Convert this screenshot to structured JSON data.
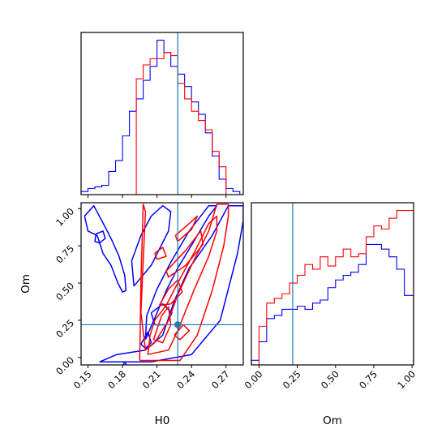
{
  "chart_data": [
    {
      "type": "histogram",
      "panel": "top-left",
      "parameter": "H0",
      "truth": 0.228,
      "xlim": [
        0.144,
        0.285
      ],
      "bins": [
        0.144,
        0.15,
        0.156,
        0.162,
        0.168,
        0.174,
        0.18,
        0.186,
        0.192,
        0.198,
        0.204,
        0.21,
        0.216,
        0.222,
        0.228,
        0.234,
        0.24,
        0.246,
        0.252,
        0.258,
        0.264,
        0.27,
        0.276,
        0.282
      ],
      "series": [
        {
          "color": "#0000ff",
          "values": [
            0.02,
            0.04,
            0.05,
            0.06,
            0.15,
            0.22,
            0.38,
            0.54,
            0.62,
            0.74,
            0.83,
            1.0,
            0.92,
            0.83,
            0.78,
            0.7,
            0.6,
            0.52,
            0.4,
            0.25,
            0.1,
            0.04,
            0.02
          ]
        },
        {
          "color": "#ff0000",
          "values": [
            0,
            0,
            0,
            0,
            0,
            0,
            0,
            0,
            0.75,
            0.84,
            0.88,
            0.88,
            0.92,
            0.9,
            0.72,
            0.62,
            0.54,
            0.48,
            0.42,
            0.28,
            0.18,
            0,
            0
          ]
        }
      ]
    },
    {
      "type": "histogram",
      "panel": "bottom-right",
      "parameter": "Om",
      "truth": 0.22,
      "xlim": [
        -0.05,
        1.01
      ],
      "xlabel": "Om",
      "xticks": [
        "0.00",
        "0.25",
        "0.50",
        "0.75",
        "1.00"
      ],
      "bins": [
        -0.05,
        0.0,
        0.05,
        0.1,
        0.15,
        0.2,
        0.25,
        0.3,
        0.35,
        0.4,
        0.45,
        0.5,
        0.55,
        0.6,
        0.65,
        0.7,
        0.75,
        0.8,
        0.85,
        0.9,
        0.95,
        1.01
      ],
      "series": [
        {
          "color": "#0000ff",
          "values": [
            0.03,
            0.15,
            0.3,
            0.32,
            0.36,
            0.36,
            0.38,
            0.36,
            0.4,
            0.42,
            0.5,
            0.55,
            0.58,
            0.6,
            0.65,
            0.78,
            0.78,
            0.75,
            0.7,
            0.62,
            0.45
          ]
        },
        {
          "color": "#ff0000",
          "values": [
            0,
            0.25,
            0.4,
            0.43,
            0.46,
            0.53,
            0.58,
            0.65,
            0.62,
            0.7,
            0.64,
            0.7,
            0.75,
            0.7,
            0.72,
            0.83,
            0.9,
            0.88,
            0.95,
            1.0,
            1.0
          ]
        }
      ]
    },
    {
      "type": "contour",
      "panel": "bottom-left",
      "x_parameter": "H0",
      "y_parameter": "Om",
      "xlabel": "H0",
      "ylabel": "Om",
      "xlim": [
        0.144,
        0.285
      ],
      "ylim": [
        -0.05,
        1.04
      ],
      "xticks": [
        "0.15",
        "0.18",
        "0.21",
        "0.24",
        "0.27"
      ],
      "yticks": [
        "0.00",
        "0.25",
        "0.50",
        "0.75",
        "1.00"
      ],
      "truth": [
        0.228,
        0.22
      ],
      "series": [
        {
          "color": "#0000ff",
          "contours": [
            [
              [
                0.16,
                -0.03
              ],
              [
                0.175,
                -0.03
              ],
              [
                0.205,
                -0.03
              ],
              [
                0.24,
                0.02
              ],
              [
                0.265,
                0.25
              ],
              [
                0.28,
                0.7
              ],
              [
                0.285,
                0.92
              ],
              [
                0.285,
                1.02
              ],
              [
                0.272,
                1.02
              ],
              [
                0.258,
                0.82
              ],
              [
                0.238,
                0.6
              ],
              [
                0.225,
                0.38
              ],
              [
                0.215,
                0.15
              ],
              [
                0.2,
                0.05
              ],
              [
                0.175,
                0.02
              ],
              [
                0.16,
                -0.03
              ]
            ],
            [
              [
                0.2,
                0.12
              ],
              [
                0.21,
                0.3
              ],
              [
                0.218,
                0.45
              ],
              [
                0.228,
                0.6
              ],
              [
                0.242,
                0.78
              ],
              [
                0.255,
                0.95
              ],
              [
                0.262,
                1.02
              ],
              [
                0.255,
                1.02
              ],
              [
                0.238,
                0.85
              ],
              [
                0.222,
                0.64
              ],
              [
                0.21,
                0.46
              ],
              [
                0.201,
                0.28
              ],
              [
                0.2,
                0.12
              ]
            ],
            [
              [
                0.19,
                0.48
              ],
              [
                0.205,
                0.62
              ],
              [
                0.22,
                0.85
              ],
              [
                0.222,
                0.98
              ],
              [
                0.215,
                1.02
              ],
              [
                0.205,
                0.95
              ],
              [
                0.196,
                0.82
              ],
              [
                0.188,
                0.65
              ],
              [
                0.19,
                0.48
              ]
            ],
            [
              [
                0.147,
                0.95
              ],
              [
                0.15,
                0.85
              ],
              [
                0.158,
                0.82
              ],
              [
                0.163,
                0.7
              ],
              [
                0.17,
                0.62
              ],
              [
                0.176,
                0.5
              ],
              [
                0.18,
                0.44
              ],
              [
                0.183,
                0.45
              ],
              [
                0.182,
                0.55
              ],
              [
                0.177,
                0.68
              ],
              [
                0.17,
                0.8
              ],
              [
                0.162,
                0.92
              ],
              [
                0.155,
                1.02
              ],
              [
                0.147,
                0.95
              ]
            ],
            [
              [
                0.157,
                0.83
              ],
              [
                0.163,
                0.85
              ],
              [
                0.165,
                0.8
              ],
              [
                0.16,
                0.77
              ],
              [
                0.156,
                0.78
              ],
              [
                0.157,
                0.83
              ]
            ],
            [
              [
                0.196,
                0.09
              ],
              [
                0.202,
                0.17
              ],
              [
                0.205,
                0.1
              ],
              [
                0.2,
                0.06
              ],
              [
                0.196,
                0.09
              ]
            ],
            [
              [
                0.205,
                0.3
              ],
              [
                0.215,
                0.36
              ],
              [
                0.223,
                0.3
              ],
              [
                0.218,
                0.22
              ],
              [
                0.208,
                0.22
              ],
              [
                0.205,
                0.3
              ]
            ],
            [
              [
                0.18,
                -0.06
              ],
              [
                0.182,
                -0.03
              ],
              [
                0.184,
                -0.06
              ]
            ]
          ]
        },
        {
          "color": "#ff0000",
          "contours": [
            [
              [
                0.195,
                -0.02
              ],
              [
                0.23,
                -0.02
              ],
              [
                0.245,
                0.15
              ],
              [
                0.258,
                0.45
              ],
              [
                0.268,
                0.75
              ],
              [
                0.272,
                0.95
              ],
              [
                0.272,
                1.03
              ],
              [
                0.262,
                1.03
              ],
              [
                0.255,
                0.85
              ],
              [
                0.24,
                0.62
              ],
              [
                0.228,
                0.42
              ],
              [
                0.22,
                0.25
              ],
              [
                0.208,
                0.1
              ],
              [
                0.2,
                0.05
              ],
              [
                0.196,
                0.3
              ],
              [
                0.198,
                0.65
              ],
              [
                0.2,
                0.98
              ],
              [
                0.198,
                1.03
              ],
              [
                0.196,
                0.5
              ],
              [
                0.195,
                -0.02
              ]
            ],
            [
              [
                0.202,
                0.02
              ],
              [
                0.22,
                0.05
              ],
              [
                0.228,
                0.18
              ],
              [
                0.242,
                0.45
              ],
              [
                0.255,
                0.68
              ],
              [
                0.262,
                0.85
              ],
              [
                0.262,
                0.95
              ],
              [
                0.255,
                0.9
              ],
              [
                0.242,
                0.7
              ],
              [
                0.228,
                0.5
              ],
              [
                0.218,
                0.35
              ],
              [
                0.208,
                0.25
              ],
              [
                0.204,
                0.15
              ],
              [
                0.202,
                0.02
              ]
            ],
            [
              [
                0.207,
                0.12
              ],
              [
                0.214,
                0.28
              ],
              [
                0.22,
                0.34
              ],
              [
                0.222,
                0.22
              ],
              [
                0.215,
                0.1
              ],
              [
                0.207,
                0.12
              ]
            ],
            [
              [
                0.212,
                0.35
              ],
              [
                0.22,
                0.46
              ],
              [
                0.228,
                0.52
              ],
              [
                0.232,
                0.44
              ],
              [
                0.222,
                0.36
              ],
              [
                0.212,
                0.35
              ]
            ],
            [
              [
                0.218,
                0.58
              ],
              [
                0.235,
                0.72
              ],
              [
                0.248,
                0.85
              ],
              [
                0.25,
                0.76
              ],
              [
                0.235,
                0.62
              ],
              [
                0.22,
                0.54
              ],
              [
                0.218,
                0.58
              ]
            ],
            [
              [
                0.226,
                0.82
              ],
              [
                0.238,
                0.9
              ],
              [
                0.245,
                0.95
              ],
              [
                0.24,
                0.86
              ],
              [
                0.228,
                0.78
              ],
              [
                0.226,
                0.82
              ]
            ],
            [
              [
                0.208,
                0.7
              ],
              [
                0.215,
                0.74
              ],
              [
                0.218,
                0.68
              ],
              [
                0.21,
                0.66
              ],
              [
                0.208,
                0.7
              ]
            ],
            [
              [
                0.225,
                0.15
              ],
              [
                0.233,
                0.22
              ],
              [
                0.238,
                0.18
              ],
              [
                0.23,
                0.12
              ],
              [
                0.225,
                0.15
              ]
            ]
          ]
        }
      ]
    }
  ]
}
